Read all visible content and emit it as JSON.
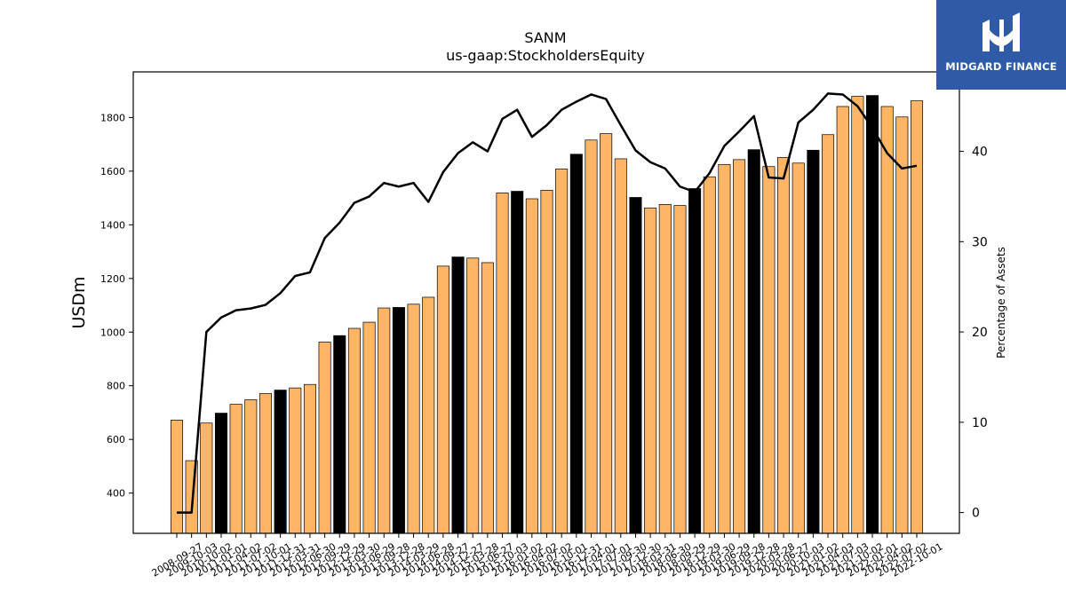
{
  "chart_data": {
    "type": "bar",
    "title": "SANM",
    "subtitle": "us-gaap:StockholdersEquity",
    "ylabel": "USDm",
    "y2label": "Percentage of Assets",
    "ylim": [
      250,
      1970
    ],
    "y2lim": [
      -2.3,
      48.8
    ],
    "yticks": [
      400,
      600,
      800,
      1000,
      1200,
      1400,
      1600,
      1800
    ],
    "y2ticks": [
      0,
      10,
      20,
      30,
      40
    ],
    "x_tick_labels": [
      "2008-09-27",
      "2009-10-03",
      "2010-10-02",
      "2011-01-01",
      "2011-04-02",
      "2011-07-02",
      "2011-10-01",
      "2011-12-31",
      "2012-03-31",
      "2012-06-30",
      "2012-09-29",
      "2012-12-29",
      "2013-03-30",
      "2013-06-29",
      "2013-09-28",
      "2013-12-28",
      "2014-03-29",
      "2014-06-28",
      "2014-09-27",
      "2014-12-27",
      "2015-03-28",
      "2015-06-27",
      "2015-10-03",
      "2016-01-02",
      "2016-04-02",
      "2016-07-02",
      "2016-10-01",
      "2016-12-31",
      "2017-04-01",
      "2017-07-01",
      "2017-09-30",
      "2017-12-30",
      "2018-03-31",
      "2018-06-30",
      "2018-09-29",
      "2018-12-29",
      "2019-03-30",
      "2019-06-29",
      "2019-09-28",
      "2019-12-28",
      "2020-03-28",
      "2020-06-27",
      "2020-10-03",
      "2021-01-02",
      "2021-04-03",
      "2021-07-03",
      "2021-10-02",
      "2022-01-01",
      "2022-04-02",
      "2022-07-02",
      "2022-10-01"
    ],
    "values": [
      672,
      521,
      661,
      698,
      731,
      748,
      771,
      784,
      792,
      805,
      963,
      987,
      1014,
      1037,
      1090,
      1092,
      1104,
      1130,
      1246,
      1280,
      1276,
      1259,
      1519,
      1525,
      1497,
      1529,
      1608,
      1663,
      1716,
      1740,
      1646,
      1502,
      1463,
      1476,
      1472,
      1535,
      1579,
      1625,
      1643,
      1680,
      1617,
      1651,
      1630,
      1678,
      1736,
      1841,
      1879,
      1882,
      1841,
      1802,
      1862
    ],
    "highlight": [
      false,
      false,
      false,
      true,
      false,
      false,
      false,
      true,
      false,
      false,
      false,
      true,
      false,
      false,
      false,
      true,
      false,
      false,
      false,
      true,
      false,
      false,
      false,
      true,
      false,
      false,
      false,
      true,
      false,
      false,
      false,
      true,
      false,
      false,
      false,
      true,
      false,
      false,
      false,
      true,
      false,
      false,
      false,
      true,
      false,
      false,
      false,
      true,
      false,
      false,
      false
    ],
    "pct_of_assets": [
      0,
      0,
      20,
      21.6,
      22.4,
      22.6,
      23,
      24.3,
      26.2,
      26.6,
      30.4,
      32.1,
      34.3,
      35,
      36.5,
      36.1,
      36.5,
      34.4,
      37.7,
      39.8,
      41,
      40,
      43.6,
      44.6,
      41.6,
      42.9,
      44.6,
      45.5,
      46.3,
      45.8,
      42.9,
      40.1,
      38.8,
      38.1,
      36.1,
      35.5,
      37.6,
      40.6,
      42.2,
      43.9,
      37.1,
      37,
      43.2,
      44.6,
      46.4,
      46.3,
      45,
      42.6,
      39.8,
      38.1,
      38.4
    ],
    "colors": {
      "bar": "#ffb566",
      "bar_highlight": "#000000",
      "line": "#000000"
    }
  },
  "logo": {
    "text": "MIDGARD FINANCE"
  }
}
